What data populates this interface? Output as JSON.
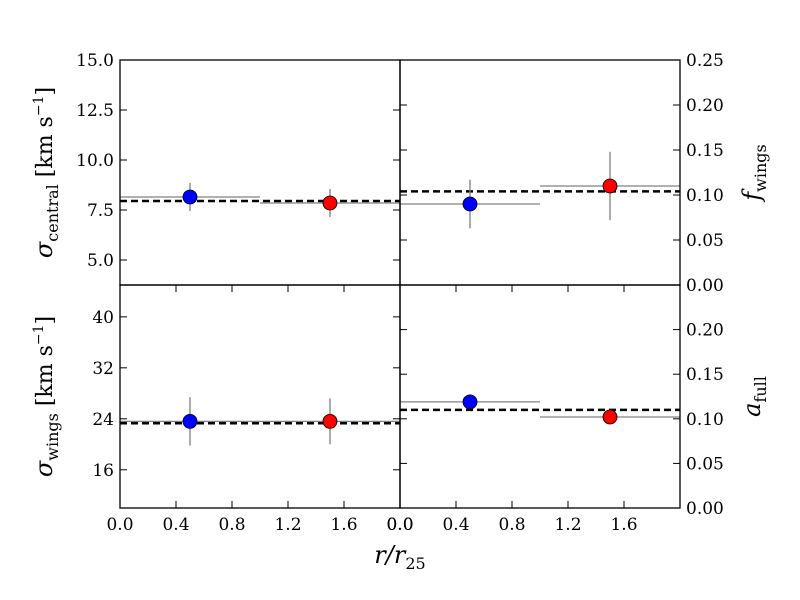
{
  "chart_data": [
    {
      "type": "scatter",
      "panel": "top-left",
      "ylabel": "σcentral [km s−1]",
      "ylabel_symbol": "σ",
      "ylabel_sub": "central",
      "ylabel_unit": "[km s",
      "ylabel_unit_exp": "−1",
      "ylabel_unit_close": "]",
      "ylim": [
        3.75,
        15.0
      ],
      "yticks": [
        "15.0",
        "12.5",
        "10.0",
        "7.5",
        "5.0"
      ],
      "ytick_values": [
        15.0,
        12.5,
        10.0,
        7.5,
        5.0
      ],
      "xlim": [
        0.0,
        2.0
      ],
      "xticks": [],
      "xtick_values": [],
      "overall_value": 7.95,
      "points": [
        {
          "x": 0.5,
          "y": 8.15,
          "yerr": 0.7,
          "xmin": 0.0,
          "xmax": 1.0,
          "color": "#0000ff"
        },
        {
          "x": 1.5,
          "y": 7.85,
          "yerr": 0.7,
          "xmin": 1.0,
          "xmax": 2.0,
          "color": "#ff0000"
        }
      ]
    },
    {
      "type": "scatter",
      "panel": "top-right",
      "ylabel": "fwings",
      "ylabel_symbol": "f",
      "ylabel_sub": "wings",
      "ylim": [
        0.0,
        0.25
      ],
      "yticks": [
        "0.25",
        "0.20",
        "0.15",
        "0.10",
        "0.05",
        "0.00"
      ],
      "ytick_values": [
        0.25,
        0.2,
        0.15,
        0.1,
        0.05,
        0.0
      ],
      "xlim": [
        0.0,
        2.0
      ],
      "xticks": [],
      "xtick_values": [],
      "overall_value": 0.104,
      "points": [
        {
          "x": 0.5,
          "y": 0.09,
          "yerr": 0.027,
          "xmin": 0.0,
          "xmax": 1.0,
          "color": "#0000ff"
        },
        {
          "x": 1.5,
          "y": 0.11,
          "yerr": 0.038,
          "xmin": 1.0,
          "xmax": 2.0,
          "color": "#ff0000"
        }
      ]
    },
    {
      "type": "scatter",
      "panel": "bottom-left",
      "ylabel": "σwings [km s−1]",
      "ylabel_symbol": "σ",
      "ylabel_sub": "wings",
      "ylabel_unit": "[km s",
      "ylabel_unit_exp": "−1",
      "ylabel_unit_close": "]",
      "ylim": [
        10.0,
        45.0
      ],
      "yticks": [
        "40",
        "32",
        "24",
        "16"
      ],
      "ytick_values": [
        40,
        32,
        24,
        16
      ],
      "xlabel": "r/r25",
      "xlim": [
        0.0,
        2.0
      ],
      "xticks": [
        "0.0",
        "0.4",
        "0.8",
        "1.2",
        "1.6"
      ],
      "xtick_values": [
        0.0,
        0.4,
        0.8,
        1.2,
        1.6
      ],
      "xtick_end_label": "0.0",
      "overall_value": 23.3,
      "points": [
        {
          "x": 0.5,
          "y": 23.6,
          "yerr": 3.8,
          "xmin": 0.0,
          "xmax": 1.0,
          "color": "#0000ff"
        },
        {
          "x": 1.5,
          "y": 23.6,
          "yerr": 3.6,
          "xmin": 1.0,
          "xmax": 2.0,
          "color": "#ff0000"
        }
      ]
    },
    {
      "type": "scatter",
      "panel": "bottom-right",
      "ylabel": "afull",
      "ylabel_symbol": "a",
      "ylabel_sub": "full",
      "ylim": [
        0.0,
        0.25
      ],
      "yticks": [
        "0.20",
        "0.15",
        "0.10",
        "0.05",
        "0.00"
      ],
      "ytick_values": [
        0.2,
        0.15,
        0.1,
        0.05,
        0.0
      ],
      "xlim": [
        0.0,
        2.0
      ],
      "xticks": [
        "0.0",
        "0.4",
        "0.8",
        "1.2",
        "1.6"
      ],
      "xtick_values": [
        0.0,
        0.4,
        0.8,
        1.2,
        1.6
      ],
      "overall_value": 0.11,
      "points": [
        {
          "x": 0.5,
          "y": 0.119,
          "yerr": 0.0,
          "xmin": 0.0,
          "xmax": 1.0,
          "color": "#0000ff"
        },
        {
          "x": 1.5,
          "y": 0.102,
          "yerr": 0.0,
          "xmin": 1.0,
          "xmax": 2.0,
          "color": "#ff0000"
        }
      ]
    }
  ]
}
